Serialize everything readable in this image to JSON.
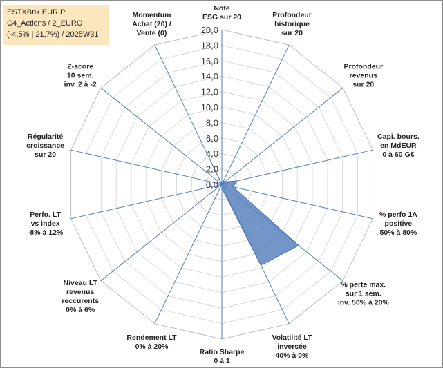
{
  "title_lines": [
    "ESTXBnk EUR P",
    "C4_Actions / 2_EURO",
    "(-4,5% | 21,7%) / 2025W31"
  ],
  "chart_data": {
    "type": "radar",
    "title": "",
    "rmin": 0,
    "rmax": 20,
    "tick_step": 2,
    "tick_labels": [
      "0,0",
      "2,0",
      "4,0",
      "6,0",
      "8,0",
      "10,0",
      "12,0",
      "14,0",
      "16,0",
      "18,0",
      "20,0"
    ],
    "axes": [
      {
        "label": [
          "Note",
          "ESG sur 20"
        ],
        "value": 0
      },
      {
        "label": [
          "Profondeur",
          "historique",
          "sur 20"
        ],
        "value": 0.5
      },
      {
        "label": [
          "Profondeur",
          "revenus",
          "sur 20"
        ],
        "value": 0.5
      },
      {
        "label": [
          "Capi. bours.",
          "en MdEUR",
          "0 à 60 G€"
        ],
        "value": 2
      },
      {
        "label": [
          "% perfo 1A",
          "positive",
          "50% à 80%"
        ],
        "value": 1.5
      },
      {
        "label": [
          "% perte max.",
          "sur 1 sem.",
          "inv. 50% à 20%"
        ],
        "value": 12.7
      },
      {
        "label": [
          "Volatilité LT",
          "inversée",
          "40% à 0%"
        ],
        "value": 11.6
      },
      {
        "label": [
          "Ratio Sharpe",
          "0 à 1"
        ],
        "value": 0.5
      },
      {
        "label": [
          "Rendement LT",
          "0% à 20%"
        ],
        "value": 0
      },
      {
        "label": [
          "Niveau LT",
          "revenus",
          "reccurents",
          "0% à 6%"
        ],
        "value": 0
      },
      {
        "label": [
          "Perfo. LT",
          "vs index",
          "-8% à 12%"
        ],
        "value": 0
      },
      {
        "label": [
          "Régularité",
          "croissance",
          "sur 20"
        ],
        "value": 0
      },
      {
        "label": [
          "Z-score",
          "10 sem.",
          "inv. 2 à -2"
        ],
        "value": 0
      },
      {
        "label": [
          "Momentum",
          "Achat (20) /",
          "Vente (0)"
        ],
        "value": 3
      }
    ],
    "colors": {
      "fill": "#5b82bd",
      "stroke": "#4a72ae",
      "grid": "#d9d9d9",
      "spoke": "#4e81bd"
    }
  }
}
